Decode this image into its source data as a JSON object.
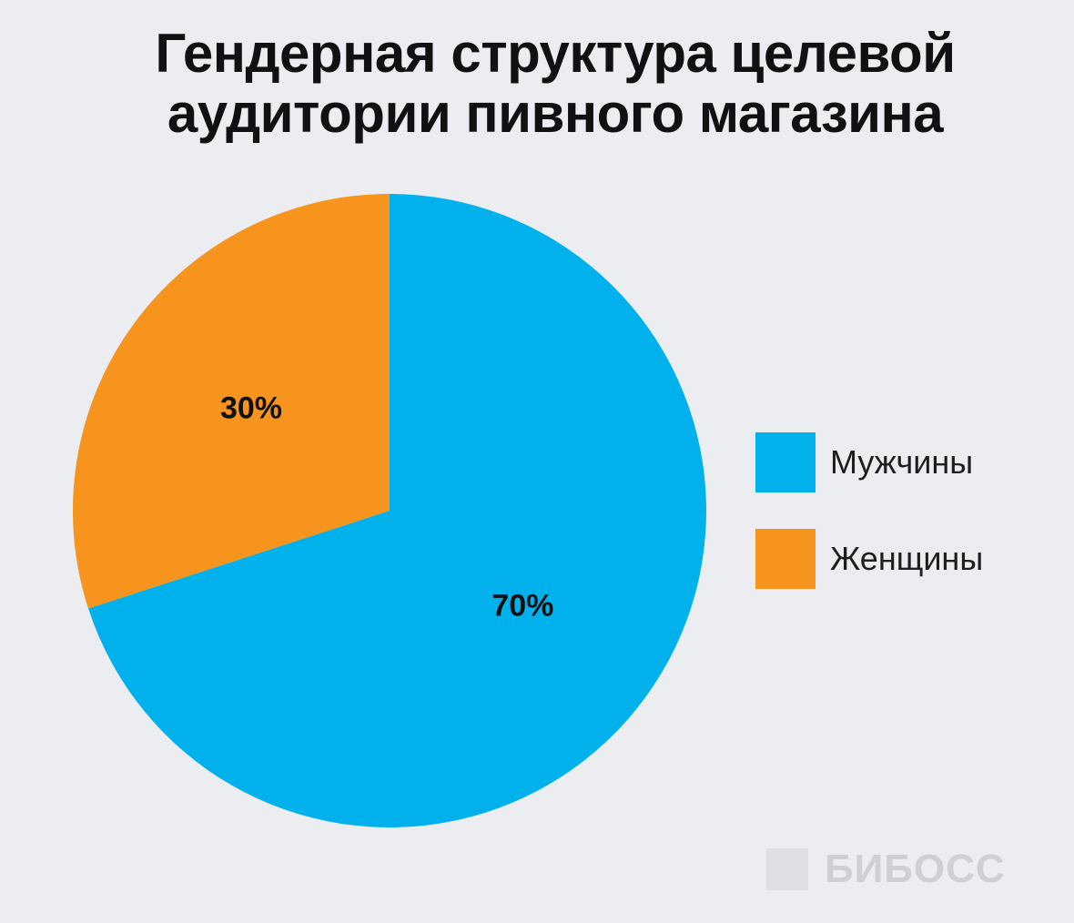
{
  "chart_data": {
    "type": "pie",
    "title_lines": [
      "Гендерная структура целевой",
      "аудитории пивного магазина"
    ],
    "slices": [
      {
        "name": "Мужчины",
        "value": 70,
        "label": "70%",
        "color": "#00b1eb"
      },
      {
        "name": "Женщины",
        "value": 30,
        "label": "30%",
        "color": "#f7941d"
      }
    ],
    "legend_position": "right"
  },
  "watermark": {
    "text": "БИБОСС"
  }
}
